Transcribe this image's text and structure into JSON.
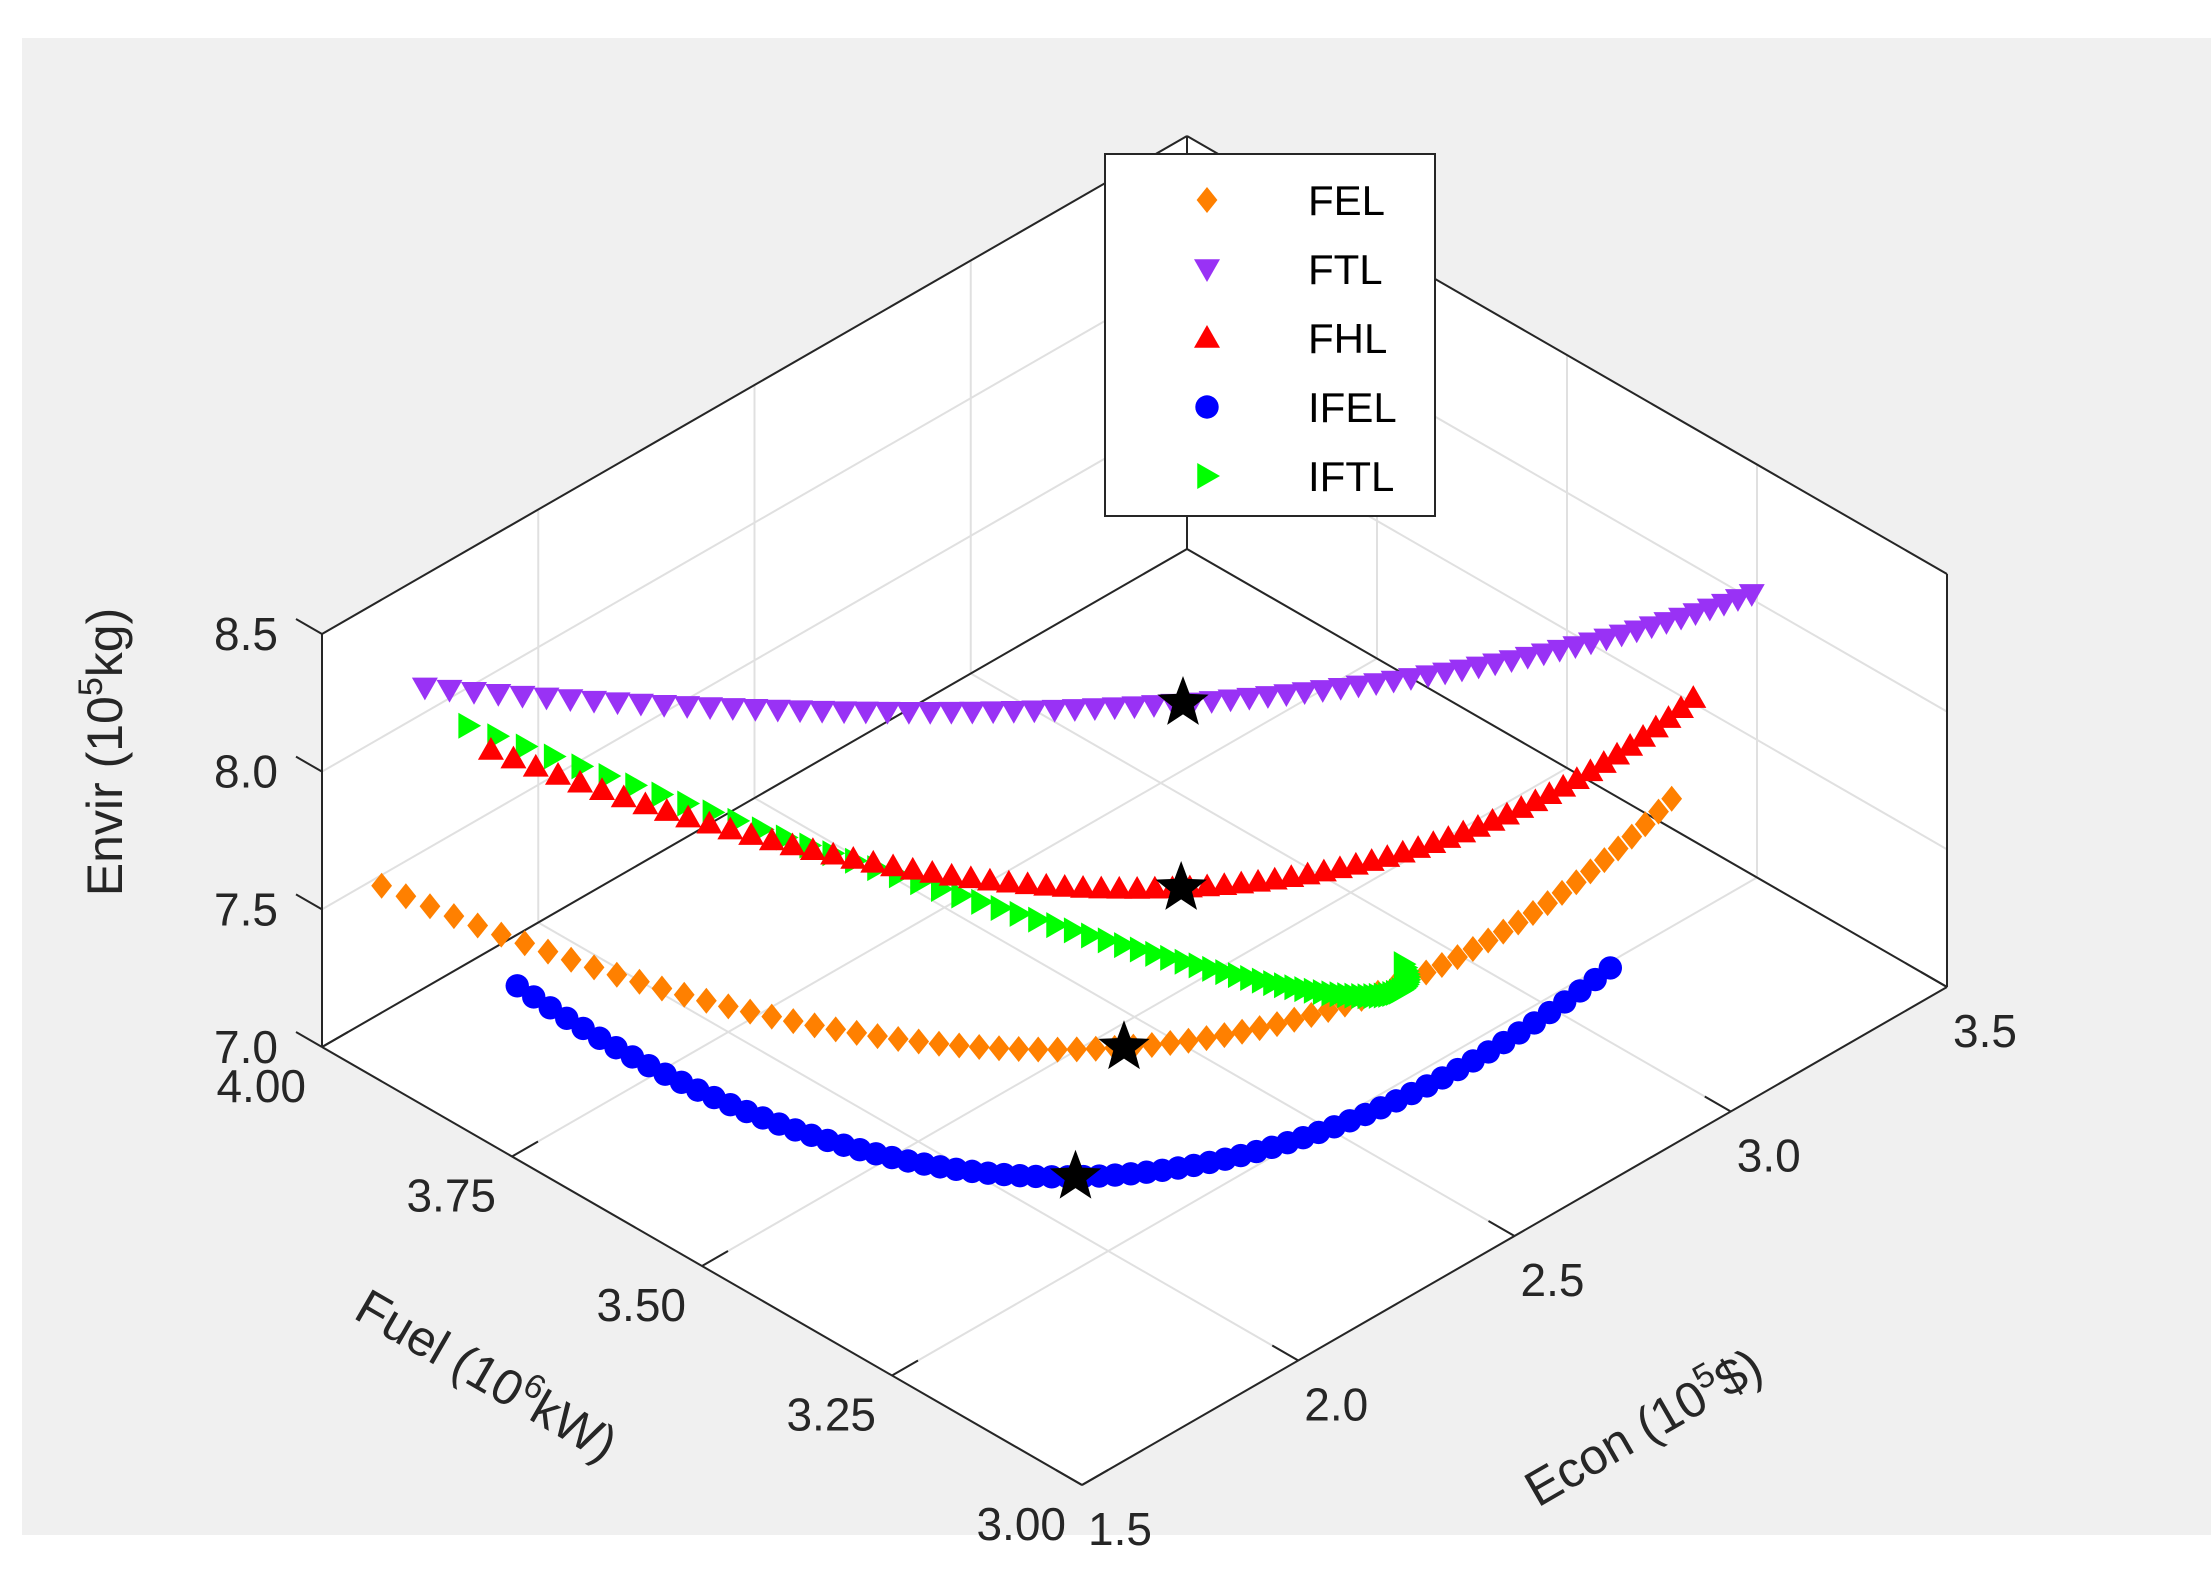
{
  "chart_data": {
    "type": "scatter",
    "projection": "3d",
    "grid": true,
    "legend_position": "top-center",
    "axes": {
      "x": {
        "label": "Econ (10",
        "label_sup": "5",
        "label_tail": "$)",
        "range": [
          1.5,
          3.5
        ],
        "ticks": [
          1.5,
          2.0,
          2.5,
          3.0,
          3.5
        ],
        "tick_labels": [
          "1.5",
          "2.0",
          "2.5",
          "3.0",
          "3.5"
        ]
      },
      "y": {
        "label": "Fuel (10",
        "label_sup": "6",
        "label_tail": "kW)",
        "range": [
          3.0,
          4.0
        ],
        "ticks": [
          3.0,
          3.25,
          3.5,
          3.75,
          4.0
        ],
        "tick_labels": [
          "3.00",
          "3.25",
          "3.50",
          "3.75",
          "4.00"
        ]
      },
      "z": {
        "label": "Envir (10",
        "label_sup": "5",
        "label_tail": "kg)",
        "range": [
          7.0,
          8.5
        ],
        "ticks": [
          7.0,
          7.5,
          8.0,
          8.5
        ],
        "tick_labels": [
          "7.0",
          "7.5",
          "8.0",
          "8.5"
        ]
      }
    },
    "series": [
      {
        "name": "FEL",
        "marker": "diamond",
        "color": "#ff8000",
        "start": [
          1.55,
          3.95,
          7.62
        ],
        "mid": [
          2.3,
          3.4,
          7.23
        ],
        "end": [
          3.25,
          3.22,
          7.56
        ]
      },
      {
        "name": "FTL",
        "marker": "triangle-down",
        "color": "#9932f5",
        "start": [
          1.65,
          3.95,
          8.25
        ],
        "mid": [
          2.7,
          3.55,
          7.88
        ],
        "end": [
          3.4,
          3.2,
          8.2
        ]
      },
      {
        "name": "FHL",
        "marker": "triangle-up",
        "color": "#ff0000",
        "start": [
          1.75,
          3.92,
          7.98
        ],
        "mid": [
          2.52,
          3.45,
          7.53
        ],
        "end": [
          3.3,
          3.22,
          7.88
        ]
      },
      {
        "name": "IFEL",
        "marker": "circle",
        "color": "#0000ff",
        "start": [
          1.6,
          3.8,
          7.45
        ],
        "mid": [
          2.1,
          3.35,
          7.02
        ],
        "end": [
          2.95,
          3.13,
          7.36
        ]
      },
      {
        "name": "IFTL",
        "marker": "triangle-right",
        "color": "#00ff00",
        "start": [
          1.75,
          3.95,
          8.02
        ],
        "mid": [
          2.4,
          3.35,
          7.51
        ],
        "end": [
          2.63,
          3.22,
          7.52
        ]
      }
    ],
    "optimal_points": [
      {
        "series": "FTL",
        "point": [
          2.7,
          3.55,
          7.88
        ]
      },
      {
        "series": "FHL",
        "point": [
          2.52,
          3.45,
          7.53
        ]
      },
      {
        "series": "FEL",
        "point": [
          2.3,
          3.4,
          7.23
        ]
      },
      {
        "series": "IFEL",
        "point": [
          2.1,
          3.35,
          7.02
        ]
      }
    ],
    "optimal_marker": {
      "shape": "star",
      "color": "#000000"
    }
  }
}
